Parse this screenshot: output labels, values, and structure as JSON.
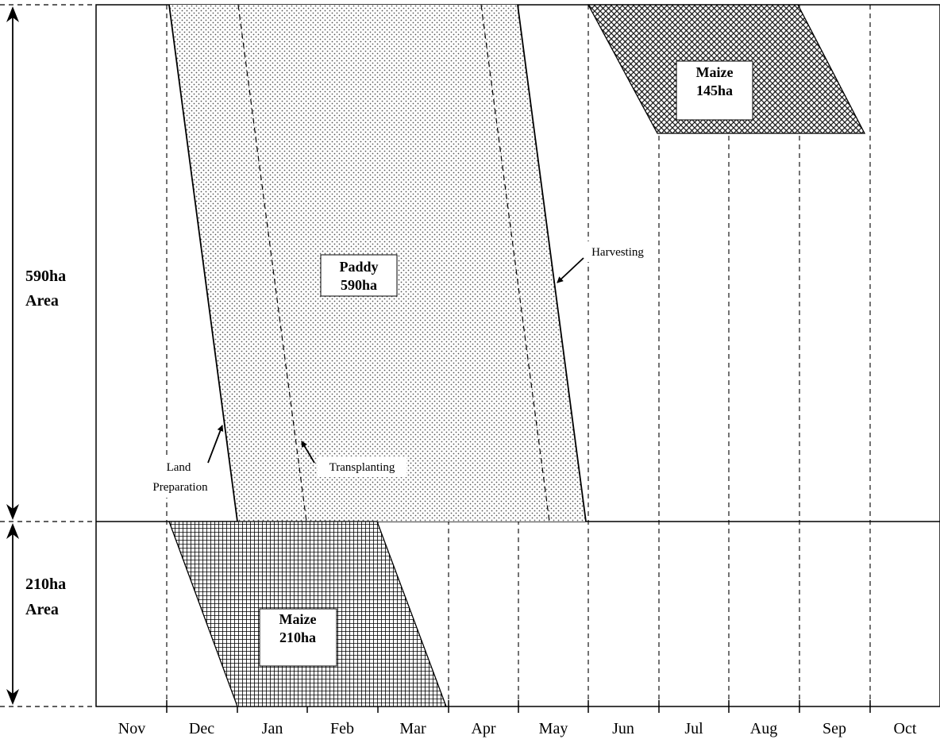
{
  "months": [
    "Nov",
    "Dec",
    "Jan",
    "Feb",
    "Mar",
    "Apr",
    "May",
    "Jun",
    "Jul",
    "Aug",
    "Sep",
    "Oct"
  ],
  "area_labels": {
    "top_line1": "590ha",
    "top_line2": "Area",
    "bottom_line1": "210ha",
    "bottom_line2": "Area"
  },
  "crops": {
    "paddy": {
      "line1": "Paddy",
      "line2": "590ha"
    },
    "maize_top": {
      "line1": "Maize",
      "line2": "145ha"
    },
    "maize_bottom": {
      "line1": "Maize",
      "line2": "210ha"
    }
  },
  "stages": {
    "land_prep_line1": "Land",
    "land_prep_line2": "Preparation",
    "transplanting": "Transplanting",
    "harvesting": "Harvesting"
  }
}
